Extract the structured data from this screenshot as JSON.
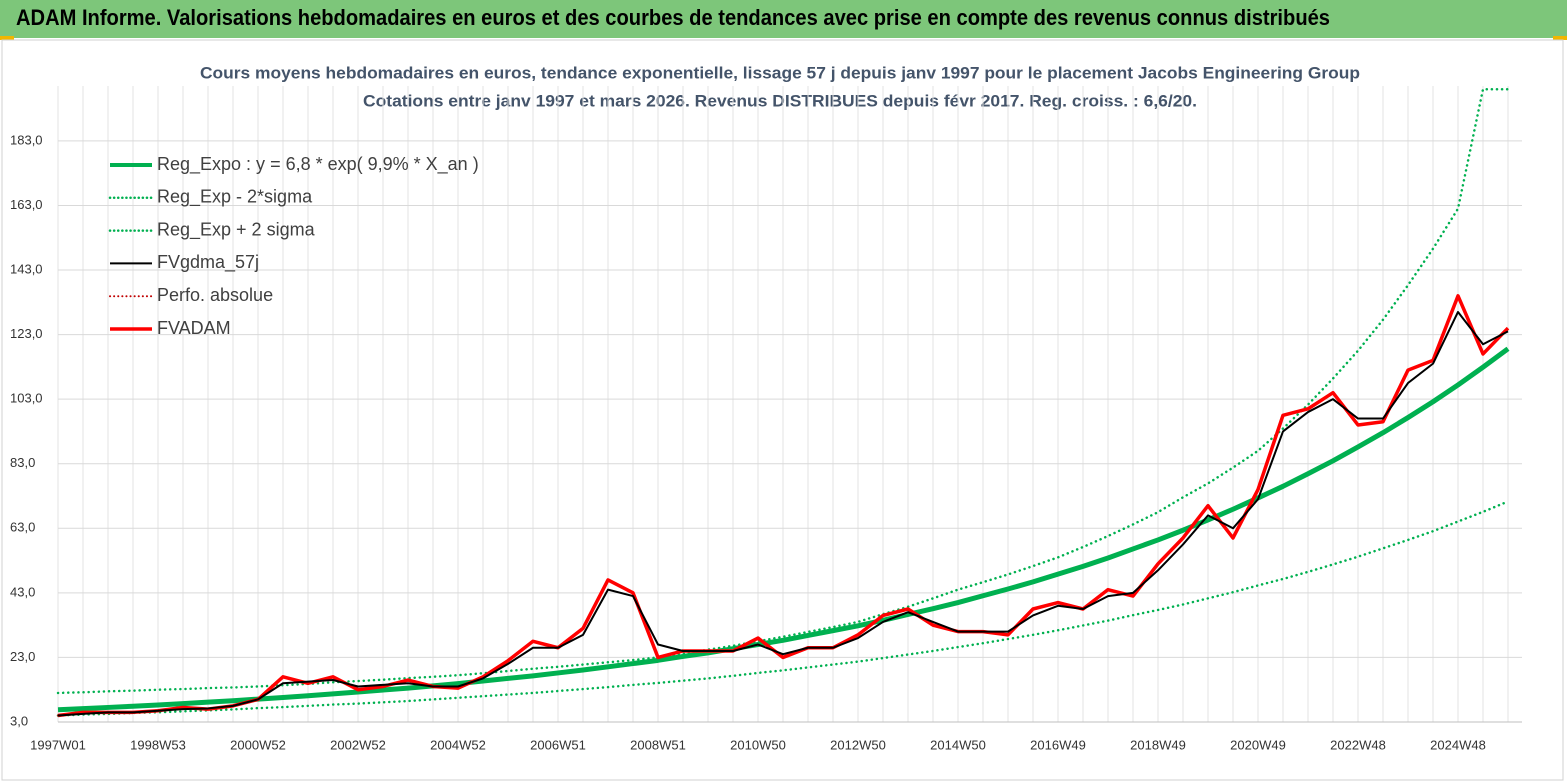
{
  "header": {
    "title": "ADAM Informe. Valorisations hebdomadaires en euros et des courbes de tendances avec prise en compte des revenus connus distribués"
  },
  "chart_data": {
    "type": "line",
    "title": "Cours moyens hebdomadaires en euros, tendance exponentielle, lissage 57 j depuis janv 1997  pour le placement Jacobs Engineering Group",
    "subtitle": "Cotations entre janv 1997 et mars 2026. Revenus DISTRIBUES depuis févr 2017. Reg. croiss. : 6,6/20.",
    "categories": [
      "1997W01",
      null,
      null,
      null,
      "1998W53",
      null,
      null,
      null,
      "2000W52",
      null,
      null,
      null,
      "2002W52",
      null,
      null,
      null,
      "2004W52",
      null,
      null,
      null,
      "2006W51",
      null,
      null,
      null,
      "2008W51",
      null,
      null,
      null,
      "2010W50",
      null,
      null,
      null,
      "2012W50",
      null,
      null,
      null,
      "2014W50",
      null,
      null,
      null,
      "2016W49",
      null,
      null,
      null,
      "2018W49",
      null,
      null,
      null,
      "2020W49",
      null,
      null,
      null,
      "2022W48",
      null,
      null,
      null,
      "2024W48",
      null,
      null
    ],
    "ylim": [
      3,
      200
    ],
    "yticks": [
      {
        "value": 3,
        "label": "3,0"
      },
      {
        "value": 23,
        "label": "23,0"
      },
      {
        "value": 43,
        "label": "43,0"
      },
      {
        "value": 63,
        "label": "63,0"
      },
      {
        "value": 83,
        "label": "83,0"
      },
      {
        "value": 103,
        "label": "103,0"
      },
      {
        "value": 123,
        "label": "123,0"
      },
      {
        "value": 143,
        "label": "143,0"
      },
      {
        "value": 163,
        "label": "163,0"
      },
      {
        "value": 183,
        "label": "183,0"
      }
    ],
    "grid": true,
    "legend": "upper left",
    "series": [
      {
        "name": "Reg_Expo : y = 6,8 * exp( 9,9% *  X_an )",
        "color": "#00b050",
        "style": "solid",
        "width": 5,
        "values": [
          6.8,
          7.14,
          7.51,
          7.89,
          8.28,
          8.7,
          9.14,
          9.6,
          10.09,
          10.6,
          11.13,
          11.7,
          12.29,
          12.9,
          13.5,
          14.2,
          14.9,
          15.7,
          16.5,
          17.3,
          18.2,
          19.1,
          20.1,
          21.1,
          22.1,
          23.3,
          24.4,
          25.7,
          27.0,
          28.3,
          29.8,
          31.3,
          32.8,
          34.5,
          36.3,
          38.1,
          40.0,
          42.1,
          44.2,
          46.4,
          48.8,
          51.2,
          53.8,
          56.6,
          59.4,
          62.4,
          65.6,
          68.9,
          72.4,
          76.0,
          79.9,
          83.9,
          88.2,
          92.6,
          97.3,
          102.2,
          107.4,
          112.9,
          118.6
        ]
      },
      {
        "name": "Reg_Exp - 2*sigma",
        "color": "#00b050",
        "style": "dotted",
        "width": 2.5,
        "values": [
          5.0,
          5.3,
          5.5,
          5.8,
          6.0,
          6.3,
          6.6,
          6.9,
          7.3,
          7.6,
          8.0,
          8.4,
          8.7,
          9.1,
          9.5,
          10.0,
          10.5,
          11.0,
          11.5,
          12.0,
          12.6,
          13.2,
          13.8,
          14.5,
          15.1,
          15.8,
          16.5,
          17.3,
          18.2,
          19.0,
          19.9,
          20.8,
          21.7,
          22.8,
          23.9,
          25.0,
          26.2,
          27.4,
          28.7,
          30.0,
          31.4,
          32.9,
          34.4,
          36.1,
          37.7,
          39.4,
          41.3,
          43.2,
          45.3,
          47.3,
          49.5,
          51.8,
          54.2,
          56.8,
          59.4,
          62.1,
          65.1,
          68.1,
          71.3
        ]
      },
      {
        "name": "Reg_Exp + 2 sigma",
        "color": "#00b050",
        "style": "dotted",
        "width": 2.5,
        "values": [
          12,
          12.2,
          12.5,
          12.7,
          13.0,
          13.2,
          13.5,
          13.7,
          14.0,
          14.4,
          14.8,
          15.3,
          15.7,
          16.1,
          16.6,
          17.0,
          17.5,
          18.1,
          18.8,
          19.5,
          20.1,
          20.8,
          21.5,
          22.2,
          23.0,
          24.1,
          25.4,
          26.6,
          28.0,
          29.4,
          30.9,
          32.4,
          34.0,
          36.4,
          38.7,
          41.3,
          44.0,
          46.3,
          48.7,
          51.3,
          54.0,
          57.2,
          60.6,
          64.2,
          68.0,
          72.6,
          76.9,
          81.8,
          87.0,
          93.9,
          101.3,
          109.4,
          118.0,
          127.6,
          138.3,
          149.6,
          162.0,
          199,
          199
        ]
      },
      {
        "name": "FVgdma_57j",
        "color": "#000000",
        "style": "solid",
        "width": 2,
        "values": [
          5,
          5.5,
          6,
          6,
          6.5,
          7,
          7.2,
          8,
          10,
          15,
          15.5,
          16,
          14,
          14.5,
          15,
          14,
          14,
          16.5,
          21,
          26,
          26,
          30,
          44,
          42,
          27,
          25,
          25,
          25,
          27,
          24,
          26,
          26,
          29,
          34,
          37,
          34,
          31,
          31,
          31,
          36,
          39,
          38,
          42,
          43,
          50,
          58,
          67,
          63,
          72,
          93,
          99,
          103,
          97,
          97,
          108,
          114,
          130,
          120,
          124
        ]
      },
      {
        "name": "Perfo. absolue",
        "color": "#c00000",
        "style": "dotted",
        "width": 2,
        "values": [
          5,
          6,
          6,
          6,
          6.5,
          7.5,
          7,
          8,
          10,
          17,
          15,
          17,
          13,
          14,
          16,
          14,
          13.5,
          17,
          22,
          28,
          26,
          32,
          47,
          43,
          23,
          25,
          25,
          25,
          29,
          23,
          26,
          26,
          30,
          36,
          38,
          33,
          31,
          31,
          30,
          38,
          40,
          38,
          44,
          42,
          52,
          60,
          70,
          60,
          75,
          98,
          100,
          105,
          95,
          96,
          112,
          115,
          135,
          117,
          125
        ]
      },
      {
        "name": "FVADAM",
        "color": "#ff0000",
        "style": "solid",
        "width": 3.5,
        "values": [
          5,
          6,
          6,
          6,
          6.5,
          7.5,
          7,
          8,
          10,
          17,
          15,
          17,
          13,
          14,
          16,
          14,
          13.5,
          17,
          22,
          28,
          26,
          32,
          47,
          43,
          23,
          25,
          25,
          25,
          29,
          23,
          26,
          26,
          30,
          36,
          38,
          33,
          31,
          31,
          30,
          38,
          40,
          38,
          44,
          42,
          52,
          60,
          70,
          60,
          75,
          98,
          100,
          105,
          95,
          96,
          112,
          115,
          135,
          117,
          125
        ]
      }
    ],
    "draw_order": [
      1,
      2,
      0,
      4,
      5,
      3
    ]
  }
}
